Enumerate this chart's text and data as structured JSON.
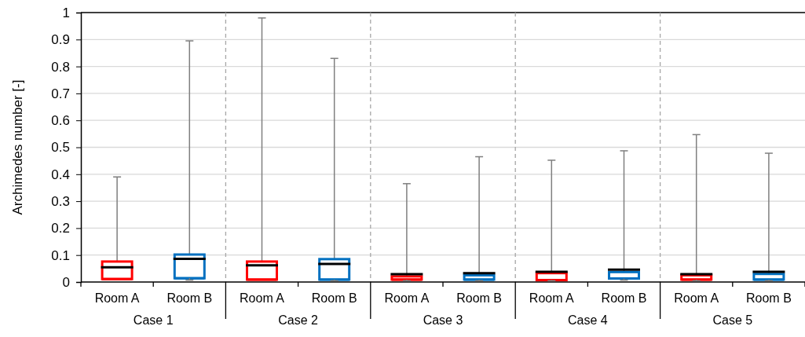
{
  "chart_data": {
    "type": "box",
    "ylabel": "Archimedes number [-]",
    "categories": [
      "Case 1",
      "Case 2",
      "Case 3",
      "Case 4",
      "Case 5"
    ],
    "series": [
      {
        "name": "Room A",
        "color": "#ff0000",
        "boxes": [
          {
            "low": 0.011,
            "q1": 0.011,
            "median": 0.011,
            "q3": 0.076,
            "high": 0.39,
            "mean": 0.055
          },
          {
            "low": 0.009,
            "q1": 0.009,
            "median": 0.009,
            "q3": 0.076,
            "high": 0.98,
            "mean": 0.062
          },
          {
            "low": 0.005,
            "q1": 0.009,
            "median": 0.009,
            "q3": 0.021,
            "high": 0.365,
            "mean": 0.029
          },
          {
            "low": 0.005,
            "q1": 0.007,
            "median": 0.007,
            "q3": 0.033,
            "high": 0.452,
            "mean": 0.038
          },
          {
            "low": 0.005,
            "q1": 0.009,
            "median": 0.009,
            "q3": 0.025,
            "high": 0.547,
            "mean": 0.029
          }
        ]
      },
      {
        "name": "Room B",
        "color": "#0070c0",
        "boxes": [
          {
            "low": 0.007,
            "q1": 0.014,
            "median": 0.014,
            "q3": 0.102,
            "high": 0.895,
            "mean": 0.086
          },
          {
            "low": 0.005,
            "q1": 0.009,
            "median": 0.009,
            "q3": 0.085,
            "high": 0.83,
            "mean": 0.067
          },
          {
            "low": 0.005,
            "q1": 0.009,
            "median": 0.009,
            "q3": 0.025,
            "high": 0.465,
            "mean": 0.033
          },
          {
            "low": 0.007,
            "q1": 0.013,
            "median": 0.013,
            "q3": 0.037,
            "high": 0.487,
            "mean": 0.046
          },
          {
            "low": 0.005,
            "q1": 0.009,
            "median": 0.009,
            "q3": 0.03,
            "high": 0.478,
            "mean": 0.038
          }
        ]
      }
    ],
    "ylim": [
      0,
      1
    ],
    "yticks": [
      0,
      0.1,
      0.2,
      0.3,
      0.4,
      0.5,
      0.6,
      0.7,
      0.8,
      0.9,
      1
    ],
    "grid": true
  }
}
